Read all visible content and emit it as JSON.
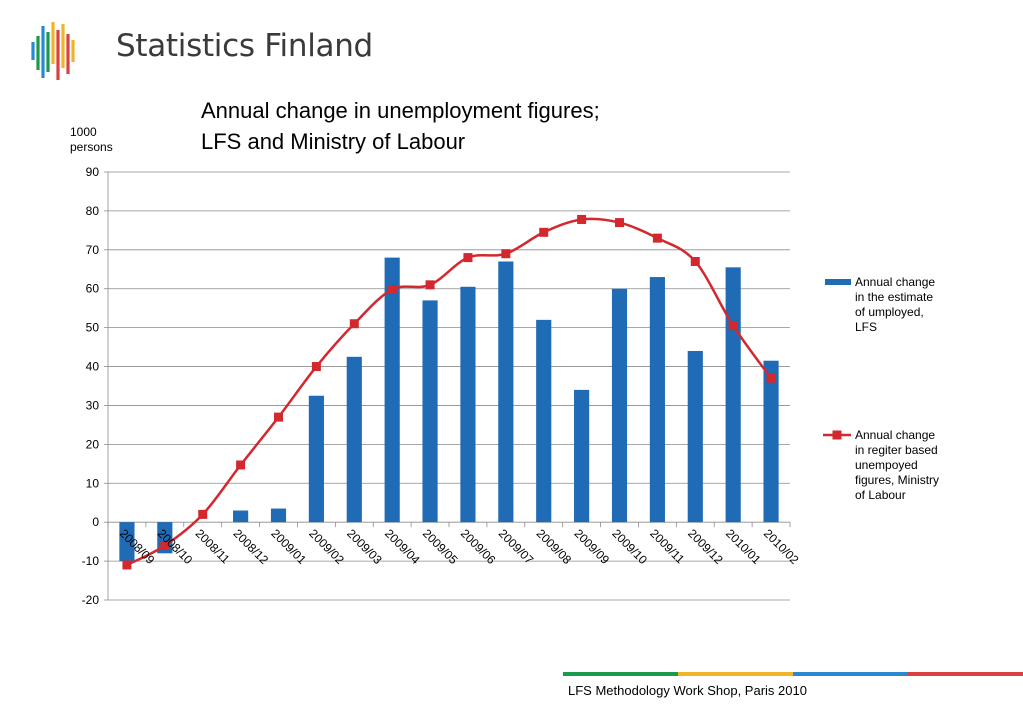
{
  "brand": {
    "name": "Statistics Finland"
  },
  "title_lines": [
    "Annual change in unemployment figures;",
    "LFS and Ministry of Labour"
  ],
  "unit_lines": [
    "1000",
    "persons"
  ],
  "footer": {
    "text": "LFS Methodology Work Shop, Paris 2010",
    "colors": [
      "#1a9a4a",
      "#f0b428",
      "#2a8ad0",
      "#d94040"
    ]
  },
  "chart_data": {
    "type": "bar+line",
    "title": "Annual change in unemployment figures; LFS and Ministry of Labour",
    "ylabel": "1000 persons",
    "ylim": [
      -20,
      90
    ],
    "yticks": [
      -20,
      -10,
      0,
      10,
      20,
      30,
      40,
      50,
      60,
      70,
      80,
      90
    ],
    "grid": true,
    "legend_position": "right",
    "categories": [
      "2008/09",
      "2008/10",
      "2008/11",
      "2008/12",
      "2009/01",
      "2009/02",
      "2009/03",
      "2009/04",
      "2009/05",
      "2009/06",
      "2009/07",
      "2009/08",
      "2009/09",
      "2009/10",
      "2009/11",
      "2009/12",
      "2010/01",
      "2010/02"
    ],
    "series": [
      {
        "name_lines": [
          "Annual change",
          "in the estimate",
          "of umployed,",
          "LFS"
        ],
        "type": "bar",
        "color": "#1f6bb5",
        "values": [
          -10,
          -8,
          0,
          3,
          3.5,
          32.5,
          42.5,
          68,
          57,
          60.5,
          67,
          52,
          34,
          60,
          63,
          44,
          65.5,
          41.5
        ]
      },
      {
        "name_lines": [
          "Annual change",
          "in regiter based",
          "unempoyed",
          "figures, Ministry",
          "of Labour"
        ],
        "type": "line",
        "color": "#d2282e",
        "values": [
          -11,
          -6,
          2,
          14.7,
          27,
          40,
          51,
          59.8,
          61,
          68,
          69,
          74.5,
          77.8,
          77,
          73,
          67,
          50.5,
          37
        ]
      }
    ]
  }
}
